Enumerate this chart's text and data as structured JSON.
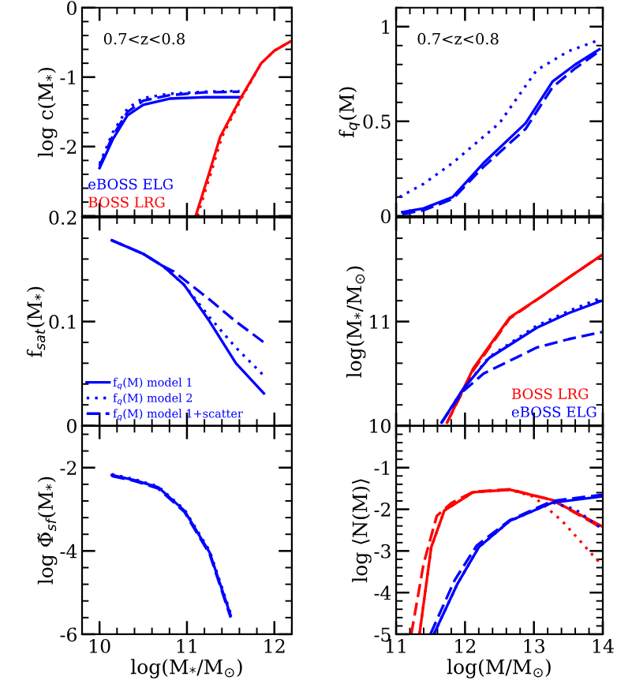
{
  "chart_data": [
    {
      "type": "line",
      "ylabel": "log c(M$_{*}$)",
      "annotations": [
        "0.7<z<0.8"
      ],
      "xlim": [
        9.8,
        12.2
      ],
      "xticks": [
        10,
        11,
        12
      ],
      "ylim": [
        -3,
        0
      ],
      "yticks": [
        0,
        -1,
        -2,
        {
          "value": -3,
          "label": null
        }
      ],
      "tick_labels": "y",
      "legend": "bottom left",
      "series": [
        {
          "name": "eBOSS ELG",
          "color": "#0000ff",
          "line_style": "solid",
          "x": [
            10.0,
            10.15,
            10.32,
            10.5,
            10.8,
            11.2,
            11.6
          ],
          "values": [
            -2.31,
            -1.9,
            -1.55,
            -1.4,
            -1.31,
            -1.29,
            -1.29
          ]
        },
        {
          "color": "#0000ff",
          "line_style": "dotted",
          "x": [
            10.0,
            10.15,
            10.32,
            10.5,
            10.8,
            11.2,
            11.6
          ],
          "values": [
            -2.25,
            -1.8,
            -1.45,
            -1.3,
            -1.24,
            -1.21,
            -1.2
          ]
        },
        {
          "color": "#0000ff",
          "line_style": "dashed",
          "x": [
            10.0,
            10.15,
            10.32,
            10.5,
            10.8,
            11.2,
            11.6
          ],
          "values": [
            -2.28,
            -1.85,
            -1.5,
            -1.34,
            -1.26,
            -1.22,
            -1.21
          ]
        },
        {
          "name": "BOSS LRG",
          "color": "#ff0000",
          "line_style": "solid",
          "x": [
            11.1,
            11.25,
            11.38,
            11.62,
            11.85,
            12.0,
            12.18
          ],
          "values": [
            -3.0,
            -2.4,
            -1.86,
            -1.29,
            -0.8,
            -0.62,
            -0.49
          ]
        },
        {
          "color": "#ff0000",
          "line_style": "dotted",
          "x": [
            11.12,
            11.27,
            11.4,
            11.63,
            11.85,
            12.0,
            12.18
          ],
          "values": [
            -3.0,
            -2.4,
            -1.86,
            -1.29,
            -0.8,
            -0.62,
            -0.49
          ]
        }
      ]
    },
    {
      "type": "line",
      "ylabel": "f$_{sat}$(M$_{*}$)",
      "xlim": [
        9.8,
        12.2
      ],
      "xticks": [
        10,
        11,
        12
      ],
      "ylim": [
        0,
        0.2
      ],
      "yticks": [
        0,
        0.1,
        0.2
      ],
      "tick_labels": "y",
      "legend": "bottom left",
      "series": [
        {
          "name": "f$_{q}$(M) model 1",
          "color": "#0000ff",
          "line_style": "solid",
          "x": [
            10.14,
            10.5,
            10.73,
            10.97,
            11.26,
            11.56,
            11.88
          ],
          "values": [
            0.178,
            0.165,
            0.153,
            0.135,
            0.1,
            0.06,
            0.031
          ]
        },
        {
          "name": "f$_{q}$(M) model 2",
          "color": "#0000ff",
          "line_style": "dotted",
          "x": [
            10.14,
            10.5,
            10.73,
            10.97,
            11.26,
            11.56,
            11.88
          ],
          "values": [
            0.178,
            0.165,
            0.153,
            0.135,
            0.104,
            0.075,
            0.048
          ]
        },
        {
          "name": "f$_{q}$(M) model 1+scatter",
          "color": "#0000ff",
          "line_style": "dashed",
          "x": [
            10.14,
            10.5,
            10.73,
            10.85,
            11.26,
            11.56,
            11.88
          ],
          "values": [
            0.178,
            0.165,
            0.153,
            0.148,
            0.121,
            0.1,
            0.08
          ]
        }
      ]
    },
    {
      "type": "line",
      "ylabel": "log Φ̃$_{sf}$(M$_{*}$)",
      "xlabel": "log(M$_{*}$/M$_{⊙}$)",
      "xlim": [
        9.8,
        12.2
      ],
      "xticks": [
        10,
        11,
        12
      ],
      "ylim": [
        -6,
        -1
      ],
      "yticks": [
        -6,
        -4,
        -2
      ],
      "series": [
        {
          "color": "#0000ff",
          "line_style": "solid",
          "x": [
            10.14,
            10.4,
            10.67,
            10.97,
            11.26,
            11.5
          ],
          "values": [
            -2.18,
            -2.3,
            -2.47,
            -3.03,
            -4.04,
            -5.55
          ]
        },
        {
          "color": "#0000ff",
          "line_style": "dotted",
          "x": [
            10.14,
            10.4,
            10.67,
            10.97,
            11.26,
            11.5
          ],
          "values": [
            -2.16,
            -2.28,
            -2.45,
            -3.0,
            -4.0,
            -5.5
          ]
        },
        {
          "color": "#0000ff",
          "line_style": "dashed",
          "x": [
            10.14,
            10.4,
            10.67,
            10.97,
            11.26,
            11.5
          ],
          "values": [
            -2.2,
            -2.32,
            -2.5,
            -3.06,
            -4.08,
            -5.6
          ]
        }
      ]
    },
    {
      "type": "line",
      "ylabel": "f$_{q}$(M)",
      "annotations": [
        "0.7<z<0.8"
      ],
      "xlim": [
        11,
        14
      ],
      "xticks": [
        11,
        12,
        13,
        14
      ],
      "ylim": [
        0,
        1.1
      ],
      "yticks": [
        0,
        0.5,
        1
      ],
      "tick_labels": "y",
      "series": [
        {
          "color": "#0000ff",
          "line_style": "solid",
          "x": [
            11.09,
            11.4,
            11.82,
            12.27,
            12.88,
            13.27,
            13.6,
            13.95
          ],
          "values": [
            0.02,
            0.04,
            0.1,
            0.28,
            0.49,
            0.71,
            0.8,
            0.88
          ]
        },
        {
          "color": "#0000ff",
          "line_style": "dashed",
          "x": [
            11.09,
            11.4,
            11.82,
            12.27,
            12.88,
            13.27,
            13.6,
            13.95
          ],
          "values": [
            0.01,
            0.03,
            0.09,
            0.26,
            0.46,
            0.68,
            0.78,
            0.87
          ]
        },
        {
          "color": "#0000ff",
          "line_style": "dotted",
          "x": [
            11.05,
            11.4,
            11.82,
            12.5,
            13.04,
            13.5,
            13.95
          ],
          "values": [
            0.1,
            0.17,
            0.28,
            0.49,
            0.77,
            0.87,
            0.93
          ]
        }
      ]
    },
    {
      "type": "line",
      "ylabel": "log(M$_{*}$/M$_{⊙}$)",
      "xlim": [
        11,
        14
      ],
      "xticks": [
        11,
        12,
        13,
        14
      ],
      "ylim": [
        10,
        12
      ],
      "yticks": [
        10,
        11,
        {
          "value": 12,
          "label": null
        }
      ],
      "tick_labels": "y",
      "legend": "bottom right",
      "series": [
        {
          "name": "BOSS LRG",
          "color": "#ff0000",
          "line_style": "solid",
          "x": [
            11.74,
            12.12,
            12.65,
            13.11,
            13.5,
            13.99
          ],
          "values": [
            10.03,
            10.55,
            11.04,
            11.24,
            11.42,
            11.64
          ]
        },
        {
          "color": "#ff0000",
          "line_style": "dashed",
          "x": [
            11.74,
            12.12,
            12.65,
            13.11,
            13.5,
            13.99
          ],
          "values": [
            10.03,
            10.53,
            11.03,
            11.24,
            11.42,
            11.64
          ]
        },
        {
          "name": "eBOSS ELG",
          "color": "#0000ff",
          "line_style": "solid",
          "x": [
            11.66,
            11.97,
            12.35,
            13.04,
            13.5,
            13.99
          ],
          "values": [
            10.03,
            10.35,
            10.65,
            10.94,
            11.08,
            11.2
          ]
        },
        {
          "color": "#0000ff",
          "line_style": "dotted",
          "x": [
            11.66,
            11.97,
            12.35,
            13.04,
            13.5,
            13.99
          ],
          "values": [
            10.03,
            10.35,
            10.66,
            10.96,
            11.1,
            11.23
          ]
        },
        {
          "color": "#0000ff",
          "line_style": "dashed",
          "x": [
            11.66,
            11.97,
            12.27,
            13.04,
            13.5,
            13.99
          ],
          "values": [
            10.03,
            10.33,
            10.5,
            10.75,
            10.83,
            10.9
          ]
        }
      ]
    },
    {
      "type": "line",
      "ylabel": "log ⟨N(M)⟩",
      "xlabel": "log(M/M$_{⊙}$)",
      "xlim": [
        11,
        14
      ],
      "xticks": [
        11,
        12,
        13,
        14
      ],
      "ylim": [
        -5,
        0
      ],
      "yticks": [
        -5,
        -4,
        -3,
        -2,
        -1,
        {
          "value": 0,
          "label": null
        }
      ],
      "series": [
        {
          "color": "#ff0000",
          "line_style": "solid",
          "x": [
            11.34,
            11.51,
            11.7,
            12.12,
            12.65,
            13.27,
            13.99
          ],
          "values": [
            -4.99,
            -2.91,
            -2.03,
            -1.59,
            -1.53,
            -1.78,
            -2.41
          ]
        },
        {
          "color": "#ff0000",
          "line_style": "dashed",
          "x": [
            11.22,
            11.4,
            11.59,
            11.8,
            12.12,
            12.65,
            13.27,
            13.99
          ],
          "values": [
            -5.0,
            -3.3,
            -2.16,
            -1.85,
            -1.58,
            -1.52,
            -1.78,
            -2.45
          ]
        },
        {
          "color": "#ff0000",
          "line_style": "dotted",
          "x": [
            11.34,
            11.51,
            11.7,
            12.12,
            12.65,
            13.0,
            13.41,
            13.99
          ],
          "values": [
            -4.99,
            -2.91,
            -2.03,
            -1.59,
            -1.53,
            -1.7,
            -2.28,
            -3.35
          ]
        },
        {
          "color": "#0000ff",
          "line_style": "solid",
          "x": [
            11.55,
            11.89,
            12.2,
            12.65,
            13.27,
            13.99
          ],
          "values": [
            -4.99,
            -3.79,
            -2.91,
            -2.28,
            -1.84,
            -1.69
          ]
        },
        {
          "color": "#0000ff",
          "line_style": "dashed",
          "x": [
            11.5,
            11.85,
            12.17,
            12.65,
            13.27,
            13.99
          ],
          "values": [
            -4.99,
            -3.7,
            -2.87,
            -2.26,
            -1.8,
            -1.65
          ]
        },
        {
          "color": "#0000ff",
          "line_style": "dotted",
          "x": [
            11.55,
            11.89,
            12.2,
            12.65,
            13.27,
            13.6,
            13.99
          ],
          "values": [
            -4.99,
            -3.79,
            -2.91,
            -2.28,
            -1.84,
            -2.0,
            -2.47
          ]
        }
      ]
    }
  ]
}
